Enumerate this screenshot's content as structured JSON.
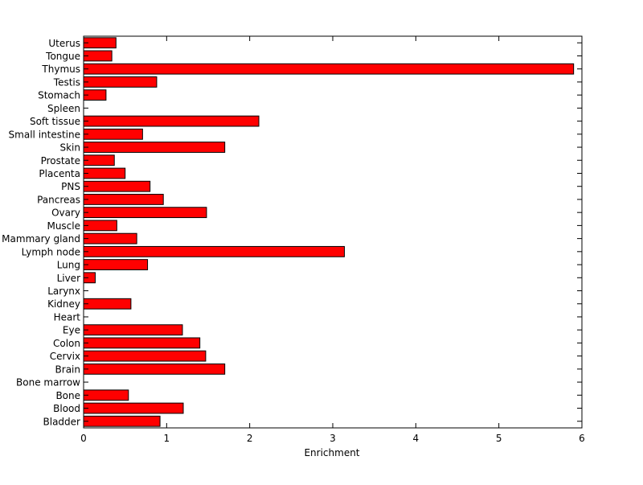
{
  "chart_data": {
    "type": "bar",
    "orientation": "horizontal",
    "categories": [
      "Bladder",
      "Blood",
      "Bone",
      "Bone marrow",
      "Brain",
      "Cervix",
      "Colon",
      "Eye",
      "Heart",
      "Kidney",
      "Larynx",
      "Liver",
      "Lung",
      "Lymph node",
      "Mammary gland",
      "Muscle",
      "Ovary",
      "Pancreas",
      "PNS",
      "Placenta",
      "Prostate",
      "Skin",
      "Small intestine",
      "Soft tissue",
      "Spleen",
      "Stomach",
      "Testis",
      "Thymus",
      "Tongue",
      "Uterus"
    ],
    "values": [
      0.92,
      1.2,
      0.54,
      0,
      1.7,
      1.47,
      1.4,
      1.19,
      0,
      0.57,
      0,
      0.14,
      0.77,
      3.14,
      0.64,
      0.4,
      1.48,
      0.96,
      0.8,
      0.5,
      0.37,
      1.7,
      0.71,
      2.11,
      0,
      0.27,
      0.88,
      5.9,
      0.34,
      0.39
    ],
    "xlabel": "Enrichment",
    "ylabel": "",
    "title": "",
    "xlim": [
      0,
      6
    ],
    "xticks": [
      "0",
      "1",
      "2",
      "3",
      "4",
      "5",
      "6"
    ],
    "bar_color": "#ff0000",
    "bar_edge_color": "#000000",
    "grid": false,
    "legend": "none"
  }
}
